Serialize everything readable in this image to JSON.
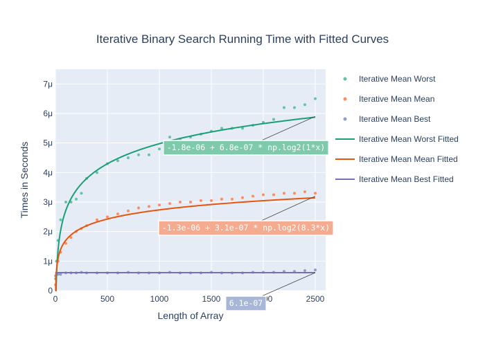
{
  "chart_data": {
    "type": "scatter",
    "title": "Iterative Binary Search Running Time with Fitted Curves",
    "xlabel": "Length of Array",
    "ylabel": "Times in Seconds",
    "xlim": [
      0,
      2600
    ],
    "ylim": [
      0,
      7.5e-06
    ],
    "x_ticks": [
      0,
      500,
      1000,
      1500,
      2000,
      2500
    ],
    "x_tick_labels": [
      "0",
      "500",
      "1000",
      "1500",
      "2000",
      "2500"
    ],
    "y_ticks": [
      0,
      1e-06,
      2e-06,
      3e-06,
      4e-06,
      5e-06,
      6e-06,
      7e-06
    ],
    "y_tick_labels": [
      "0",
      "1μ",
      "2μ",
      "3μ",
      "4μ",
      "5μ",
      "6μ",
      "7μ"
    ],
    "grid": true,
    "legend_position": "right",
    "x_range_points": [
      1,
      2500
    ],
    "series": [
      {
        "name": "Iterative Mean Worst",
        "kind": "markers",
        "color": "#66c2a5",
        "x": [
          1,
          10,
          25,
          50,
          100,
          150,
          200,
          250,
          300,
          400,
          500,
          600,
          700,
          800,
          900,
          1000,
          1100,
          1200,
          1300,
          1400,
          1500,
          1600,
          1700,
          1800,
          1900,
          2000,
          2100,
          2200,
          2300,
          2400,
          2500
        ],
        "y": [
          4e-07,
          1e-06,
          1.7e-06,
          2.4e-06,
          3e-06,
          3e-06,
          3.1e-06,
          3.3e-06,
          3.8e-06,
          4e-06,
          4.3e-06,
          4.4e-06,
          4.5e-06,
          4.6e-06,
          4.6e-06,
          4.8e-06,
          5.2e-06,
          5.1e-06,
          5.2e-06,
          5.3e-06,
          5.4e-06,
          5.5e-06,
          5.5e-06,
          5.5e-06,
          5.6e-06,
          5.7e-06,
          5.8e-06,
          6.2e-06,
          6.2e-06,
          6.3e-06,
          6.5e-06
        ]
      },
      {
        "name": "Iterative Mean Mean",
        "kind": "markers",
        "color": "#fc8d62",
        "x": [
          1,
          10,
          25,
          50,
          100,
          150,
          200,
          250,
          300,
          400,
          500,
          600,
          700,
          800,
          900,
          1000,
          1100,
          1200,
          1300,
          1400,
          1500,
          1600,
          1700,
          1800,
          1900,
          2000,
          2100,
          2200,
          2300,
          2400,
          2500
        ],
        "y": [
          2e-07,
          6e-07,
          1e-06,
          1.3e-06,
          1.6e-06,
          1.8e-06,
          2e-06,
          2.1e-06,
          2.2e-06,
          2.4e-06,
          2.5e-06,
          2.6e-06,
          2.7e-06,
          2.8e-06,
          2.85e-06,
          2.9e-06,
          2.95e-06,
          3e-06,
          3e-06,
          3.05e-06,
          3.05e-06,
          3.1e-06,
          3.1e-06,
          3.15e-06,
          3.2e-06,
          3.25e-06,
          3.25e-06,
          3.3e-06,
          3.3e-06,
          3.35e-06,
          3.3e-06
        ]
      },
      {
        "name": "Iterative Mean Best",
        "kind": "markers",
        "color": "#8da0cb",
        "x": [
          1,
          10,
          25,
          50,
          100,
          150,
          200,
          250,
          300,
          400,
          500,
          600,
          700,
          800,
          900,
          1000,
          1100,
          1200,
          1300,
          1400,
          1500,
          1600,
          1700,
          1800,
          1900,
          2000,
          2100,
          2200,
          2300,
          2400,
          2500
        ],
        "y": [
          5e-07,
          5.5e-07,
          5.5e-07,
          5.5e-07,
          6e-07,
          6e-07,
          6e-07,
          6.2e-07,
          6e-07,
          6e-07,
          6e-07,
          6e-07,
          6.2e-07,
          6e-07,
          6e-07,
          6e-07,
          6.2e-07,
          6e-07,
          6e-07,
          6e-07,
          6.2e-07,
          6e-07,
          6e-07,
          6e-07,
          6.2e-07,
          6.2e-07,
          6.2e-07,
          6.5e-07,
          6.5e-07,
          6.8e-07,
          7e-07
        ]
      },
      {
        "name": "Iterative Mean Worst Fitted",
        "kind": "fit",
        "color": "#1b9e77",
        "model": "log",
        "a": -1.8e-06,
        "b": 6.8e-07,
        "k": 1
      },
      {
        "name": "Iterative Mean Mean Fitted",
        "kind": "fit",
        "color": "#e6550d",
        "model": "log",
        "a": -1.3e-06,
        "b": 3.1e-07,
        "k": 8.3
      },
      {
        "name": "Iterative Mean Best Fitted",
        "kind": "fit",
        "color": "#7570b3",
        "model": "const",
        "a": 6.1e-07
      }
    ],
    "annotations": [
      {
        "text": "-1.8e-06 + 6.8e-07 * np.log2(1*x)",
        "bg": "#7fc9ac",
        "arrow_x": 2500,
        "arrow_y": 5.9e-06
      },
      {
        "text": "-1.3e-06 + 3.1e-07 * np.log2(8.3*x)",
        "bg": "#f5ab8f",
        "arrow_x": 2500,
        "arrow_y": 3.2e-06
      },
      {
        "text": "6.1e-07",
        "bg": "#a8b6d8",
        "arrow_x": 2500,
        "arrow_y": 6.1e-07
      }
    ]
  }
}
